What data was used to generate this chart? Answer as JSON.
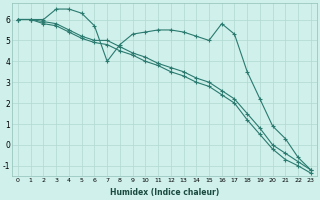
{
  "xlabel": "Humidex (Indice chaleur)",
  "bg_color": "#cff0eb",
  "line_color": "#2a7a6f",
  "grid_color": "#b0d8d0",
  "xlim": [
    -0.5,
    23.5
  ],
  "ylim": [
    -1.5,
    6.8
  ],
  "xticks": [
    0,
    1,
    2,
    3,
    4,
    5,
    6,
    7,
    8,
    9,
    10,
    11,
    12,
    13,
    14,
    15,
    16,
    17,
    18,
    19,
    20,
    21,
    22,
    23
  ],
  "yticks": [
    -1,
    0,
    1,
    2,
    3,
    4,
    5,
    6
  ],
  "line1_x": [
    0,
    1,
    2,
    3,
    4,
    5,
    6,
    7,
    8,
    9,
    10,
    11,
    12,
    13,
    14,
    15,
    16,
    17,
    18,
    19,
    20,
    21,
    22,
    23
  ],
  "line1_y": [
    6.0,
    6.0,
    6.0,
    6.5,
    6.5,
    6.3,
    5.7,
    4.0,
    4.8,
    5.3,
    5.4,
    5.5,
    5.5,
    5.4,
    5.2,
    5.0,
    5.8,
    5.3,
    3.5,
    2.2,
    0.9,
    0.3,
    -0.6,
    -1.2
  ],
  "line2_x": [
    0,
    1,
    2,
    3,
    4,
    5,
    6,
    7,
    8,
    9,
    10,
    11,
    12,
    13,
    14,
    15,
    16,
    17,
    18,
    19,
    20,
    21,
    22,
    23
  ],
  "line2_y": [
    6.0,
    6.0,
    5.9,
    5.8,
    5.5,
    5.2,
    5.0,
    5.0,
    4.7,
    4.4,
    4.2,
    3.9,
    3.7,
    3.5,
    3.2,
    3.0,
    2.6,
    2.2,
    1.5,
    0.8,
    0.0,
    -0.4,
    -0.8,
    -1.2
  ],
  "line3_x": [
    0,
    1,
    2,
    3,
    4,
    5,
    6,
    7,
    8,
    9,
    10,
    11,
    12,
    13,
    14,
    15,
    16,
    17,
    18,
    19,
    20,
    21,
    22,
    23
  ],
  "line3_y": [
    6.0,
    6.0,
    5.8,
    5.7,
    5.4,
    5.1,
    4.9,
    4.8,
    4.5,
    4.3,
    4.0,
    3.8,
    3.5,
    3.3,
    3.0,
    2.8,
    2.4,
    2.0,
    1.2,
    0.5,
    -0.2,
    -0.7,
    -1.0,
    -1.35
  ]
}
